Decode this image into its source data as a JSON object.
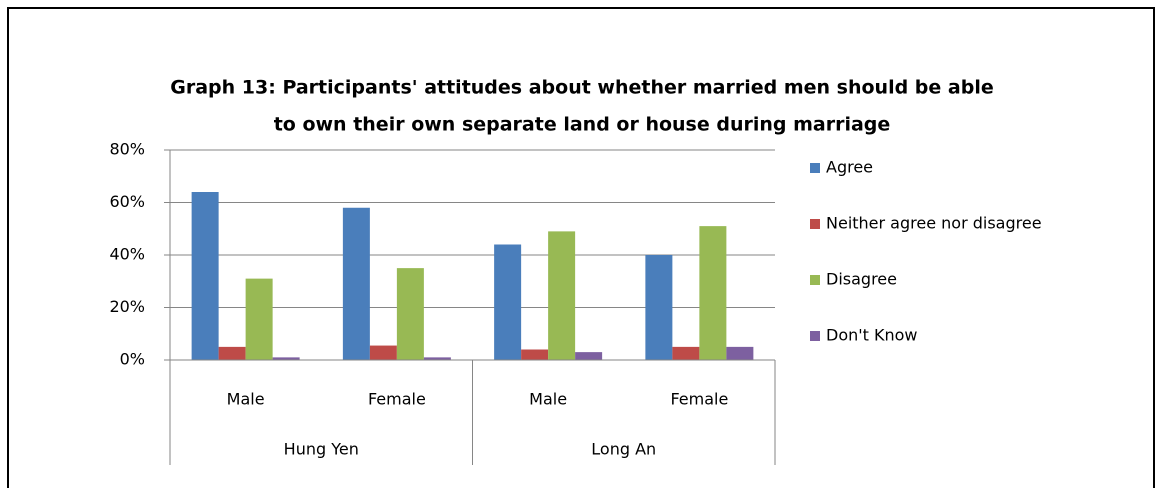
{
  "chart_data": {
    "type": "bar",
    "title": [
      "Graph 13: Participants' attitudes about whether married men should be able",
      "to own their own separate land or house during marriage"
    ],
    "categories": [
      "Male",
      "Female",
      "Male",
      "Female"
    ],
    "groups": [
      {
        "name": "Hung Yen",
        "size": 2
      },
      {
        "name": "Long An",
        "size": 2
      }
    ],
    "series": [
      {
        "name": "Agree",
        "color": "#4a7ebb",
        "values": [
          64,
          58,
          44,
          40
        ]
      },
      {
        "name": "Neither agree nor disagree",
        "color": "#be4b48",
        "values": [
          5,
          5.5,
          4,
          5
        ]
      },
      {
        "name": "Disagree",
        "color": "#98b954",
        "values": [
          31,
          35,
          49,
          51
        ]
      },
      {
        "name": "Don't Know",
        "color": "#7d60a0",
        "values": [
          1,
          1,
          3,
          5
        ]
      }
    ],
    "ylim": [
      0,
      80
    ],
    "yticks": [
      {
        "value": 0,
        "label": "0%"
      },
      {
        "value": 20,
        "label": "20%"
      },
      {
        "value": 40,
        "label": "40%"
      },
      {
        "value": 60,
        "label": "60%"
      },
      {
        "value": 80,
        "label": "80%"
      }
    ],
    "grid": true,
    "legend": "right"
  }
}
